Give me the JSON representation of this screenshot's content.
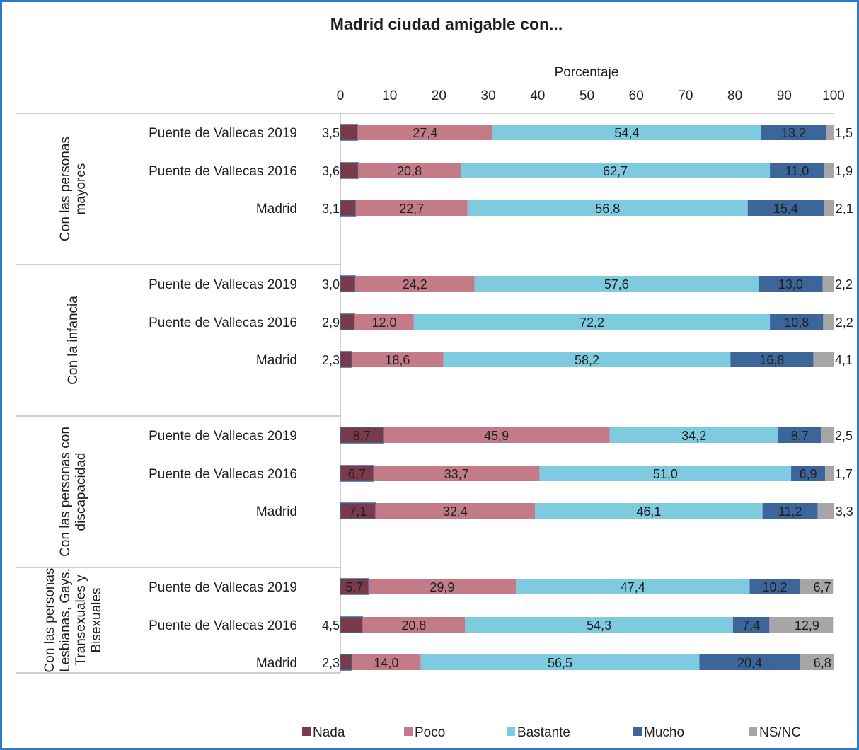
{
  "chart_data": {
    "type": "bar",
    "orientation": "horizontal",
    "stacked": true,
    "title": "Madrid ciudad amigable con...",
    "xlabel": "Porcentaje",
    "xlim": [
      0,
      100
    ],
    "x_ticks": [
      "0",
      "10",
      "20",
      "30",
      "40",
      "50",
      "60",
      "70",
      "80",
      "90",
      "100"
    ],
    "axis_position": "top",
    "grid": false,
    "legend_position": "bottom",
    "groups": [
      {
        "name": "Con las personas mayores",
        "lines": [
          "Con las personas",
          "mayores"
        ],
        "rows": [
          {
            "label": "Puente de Vallecas 2019",
            "values": [
              3.5,
              27.4,
              54.4,
              13.2,
              1.5
            ],
            "texts": [
              "3,5",
              "27,4",
              "54,4",
              "13,2",
              "1,5"
            ]
          },
          {
            "label": "Puente de Vallecas 2016",
            "values": [
              3.6,
              20.8,
              62.7,
              11.0,
              1.9
            ],
            "texts": [
              "3,6",
              "20,8",
              "62,7",
              "11,0",
              "1,9"
            ]
          },
          {
            "label": "Madrid",
            "values": [
              3.1,
              22.7,
              56.8,
              15.4,
              2.1
            ],
            "texts": [
              "3,1",
              "22,7",
              "56,8",
              "15,4",
              "2,1"
            ]
          }
        ]
      },
      {
        "name": "Con la infancia",
        "lines": [
          "Con la infancia"
        ],
        "rows": [
          {
            "label": "Puente de Vallecas 2019",
            "values": [
              3.0,
              24.2,
              57.6,
              13.0,
              2.2
            ],
            "texts": [
              "3,0",
              "24,2",
              "57,6",
              "13,0",
              "2,2"
            ]
          },
          {
            "label": "Puente de Vallecas 2016",
            "values": [
              2.9,
              12.0,
              72.2,
              10.8,
              2.2
            ],
            "texts": [
              "2,9",
              "12,0",
              "72,2",
              "10,8",
              "2,2"
            ]
          },
          {
            "label": "Madrid",
            "values": [
              2.3,
              18.6,
              58.2,
              16.8,
              4.1
            ],
            "texts": [
              "2,3",
              "18,6",
              "58,2",
              "16,8",
              "4,1"
            ]
          }
        ]
      },
      {
        "name": "Con las personas con discapacidad",
        "lines": [
          "Con las personas con",
          "discapacidad"
        ],
        "rows": [
          {
            "label": "Puente de Vallecas 2019",
            "values": [
              8.7,
              45.9,
              34.2,
              8.7,
              2.5
            ],
            "texts": [
              "8,7",
              "45,9",
              "34,2",
              "8,7",
              "2,5"
            ]
          },
          {
            "label": "Puente de Vallecas 2016",
            "values": [
              6.7,
              33.7,
              51.0,
              6.9,
              1.7
            ],
            "texts": [
              "6,7",
              "33,7",
              "51,0",
              "6,9",
              "1,7"
            ]
          },
          {
            "label": "Madrid",
            "values": [
              7.1,
              32.4,
              46.1,
              11.2,
              3.3
            ],
            "texts": [
              "7,1",
              "32,4",
              "46,1",
              "11,2",
              "3,3"
            ]
          }
        ]
      },
      {
        "name": "Con las personas Lesbianas, Gays, Transexuales y Bisexuales",
        "lines": [
          "Con las personas",
          "Lesbianas, Gays,",
          "Transexuales y",
          "Bisexuales"
        ],
        "rows": [
          {
            "label": "Puente de Vallecas 2019",
            "values": [
              5.7,
              29.9,
              47.4,
              10.2,
              6.7
            ],
            "texts": [
              "5,7",
              "29,9",
              "47,4",
              "10,2",
              "6,7"
            ]
          },
          {
            "label": "Puente de Vallecas 2016",
            "values": [
              4.5,
              20.8,
              54.3,
              7.4,
              12.9
            ],
            "texts": [
              "4,5",
              "20,8",
              "54,3",
              "7,4",
              "12,9"
            ]
          },
          {
            "label": "Madrid",
            "values": [
              2.3,
              14.0,
              56.5,
              20.4,
              6.8
            ],
            "texts": [
              "2,3",
              "14,0",
              "56,5",
              "20,4",
              "6,8"
            ]
          }
        ]
      }
    ],
    "series": [
      {
        "name": "Nada",
        "color": "#7b3a4a"
      },
      {
        "name": "Poco",
        "color": "#c27b87"
      },
      {
        "name": "Bastante",
        "color": "#7ecbe0"
      },
      {
        "name": "Mucho",
        "color": "#3c6699"
      },
      {
        "name": "NS/NC",
        "color": "#a6a6a6"
      }
    ],
    "frame_color": "#2a7cc7"
  }
}
